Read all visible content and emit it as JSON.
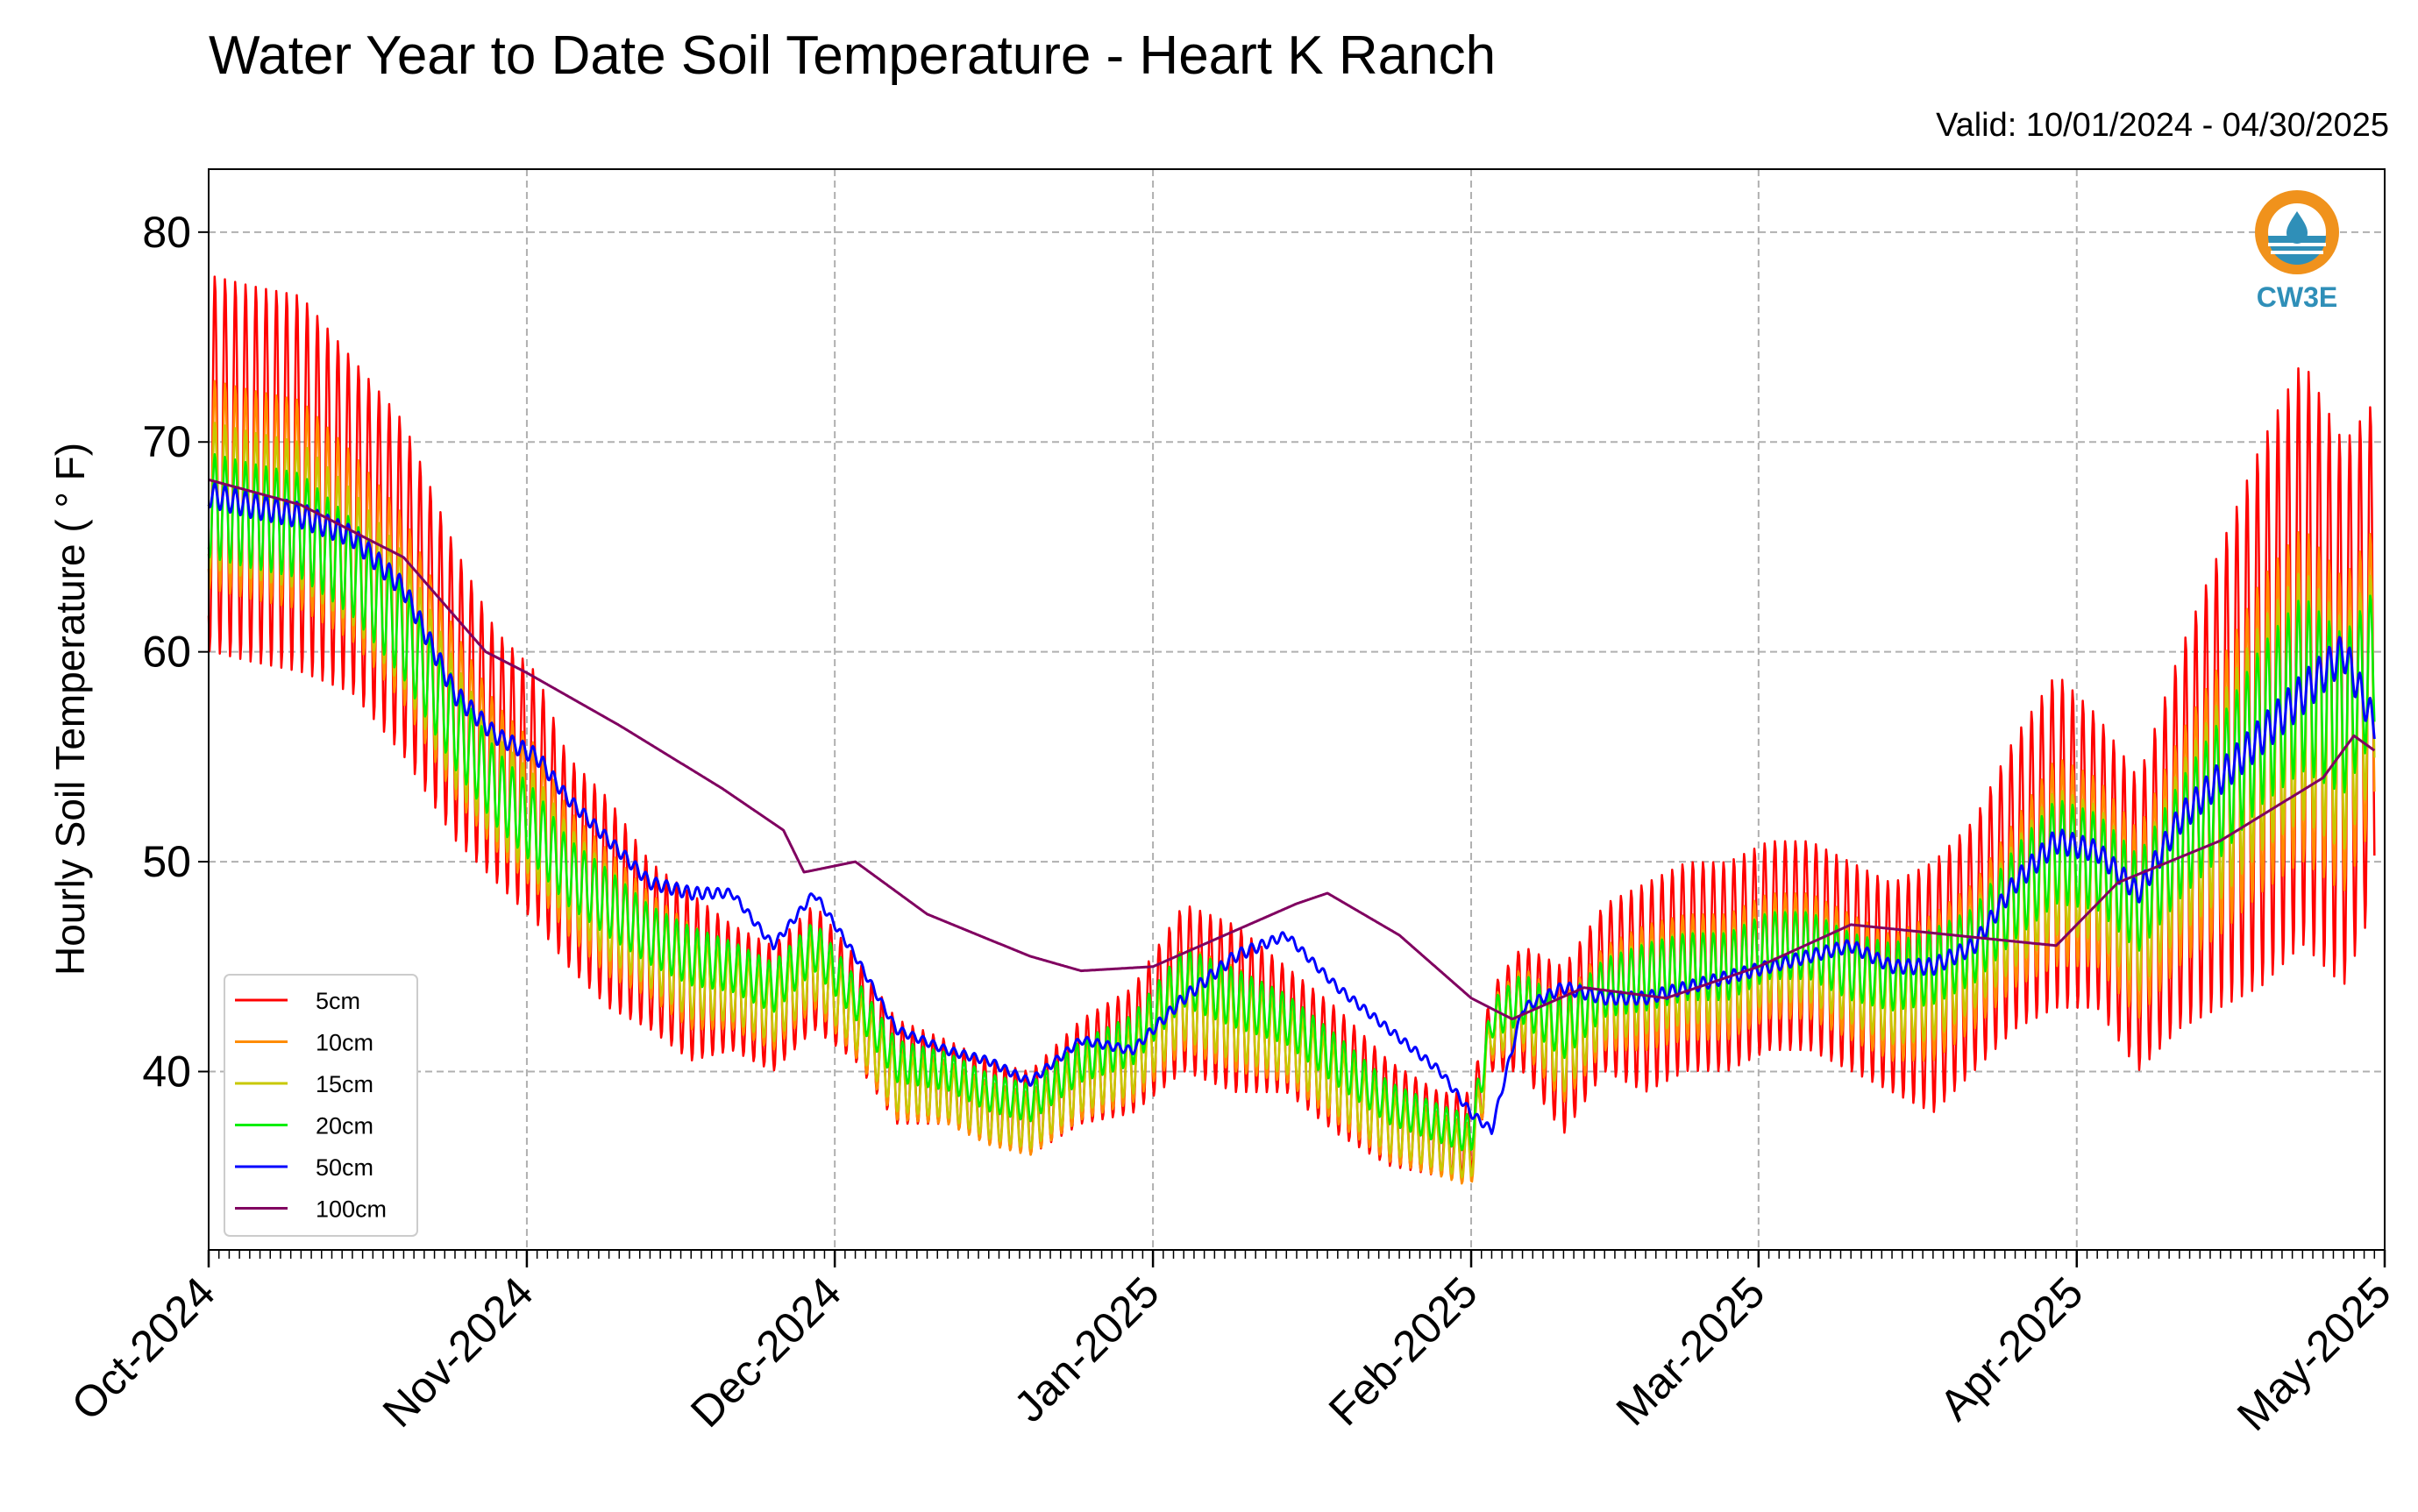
{
  "chart_data": {
    "type": "line",
    "title": "Water Year to Date Soil Temperature - Heart K Ranch",
    "subtitle": "Valid: 10/01/2024 - 04/30/2025",
    "xlabel": "",
    "ylabel": "Hourly Soil Temperature ($^\\circ$F)",
    "ylabel_display": "Hourly Soil Temperature ( ° F)",
    "x_range": [
      "2024-10-01",
      "2025-05-01"
    ],
    "ylim": [
      31.5,
      83
    ],
    "y_ticks": [
      40,
      50,
      60,
      70,
      80
    ],
    "x_ticks": [
      {
        "date": "2024-10-01",
        "label": "Oct-2024"
      },
      {
        "date": "2024-11-01",
        "label": "Nov-2024"
      },
      {
        "date": "2024-12-01",
        "label": "Dec-2024"
      },
      {
        "date": "2025-01-01",
        "label": "Jan-2025"
      },
      {
        "date": "2025-02-01",
        "label": "Feb-2025"
      },
      {
        "date": "2025-03-01",
        "label": "Mar-2025"
      },
      {
        "date": "2025-04-01",
        "label": "Apr-2025"
      },
      {
        "date": "2025-05-01",
        "label": "May-2025"
      }
    ],
    "grid": true,
    "legend_position": "lower-left",
    "logo": "CW3E",
    "series": [
      {
        "name": "5cm",
        "color": "#ff0000",
        "x": [
          "2024-10-01",
          "2024-10-05",
          "2024-10-10",
          "2024-10-15",
          "2024-10-20",
          "2024-10-25",
          "2024-10-29",
          "2024-11-02",
          "2024-11-05",
          "2024-11-09",
          "2024-11-13",
          "2024-11-17",
          "2024-11-21",
          "2024-11-25",
          "2024-11-29",
          "2024-12-03",
          "2024-12-07",
          "2024-12-12",
          "2024-12-16",
          "2024-12-20",
          "2024-12-25",
          "2024-12-30",
          "2025-01-04",
          "2025-01-09",
          "2025-01-14",
          "2025-01-19",
          "2025-01-24",
          "2025-01-29",
          "2025-02-01",
          "2025-02-03",
          "2025-02-06",
          "2025-02-10",
          "2025-02-14",
          "2025-02-18",
          "2025-02-22",
          "2025-02-26",
          "2025-03-02",
          "2025-03-06",
          "2025-03-10",
          "2025-03-14",
          "2025-03-18",
          "2025-03-22",
          "2025-03-26",
          "2025-03-30",
          "2025-04-03",
          "2025-04-07",
          "2025-04-11",
          "2025-04-15",
          "2025-04-19",
          "2025-04-23",
          "2025-04-27",
          "2025-04-30"
        ],
        "y": [
          69,
          68.5,
          68,
          66,
          63,
          58,
          55,
          53,
          50,
          48,
          46,
          44.5,
          44,
          43,
          45,
          43,
          40,
          39.5,
          38.5,
          38,
          40,
          41,
          44,
          43,
          42,
          40,
          38,
          37,
          37,
          42,
          43,
          41,
          44,
          44,
          45,
          45,
          46,
          46,
          45,
          44,
          44,
          46,
          49,
          51,
          50,
          47,
          51,
          54,
          57,
          60,
          57,
          60
        ],
        "amplitude": [
          9,
          9,
          9,
          8,
          8,
          7,
          6,
          6,
          5,
          5,
          4,
          4,
          3,
          3,
          3,
          2.5,
          2.5,
          2,
          2,
          2,
          2.5,
          3,
          4,
          4,
          3,
          3,
          2.5,
          2,
          2,
          2,
          3,
          4,
          4,
          5,
          5,
          5,
          5,
          5,
          5,
          5,
          6,
          6,
          7,
          8,
          7,
          7,
          9,
          11,
          13,
          14,
          13,
          12
        ]
      },
      {
        "name": "10cm",
        "color": "#ff8c00",
        "x": [
          "2024-10-01",
          "2024-10-05",
          "2024-10-10",
          "2024-10-15",
          "2024-10-20",
          "2024-10-25",
          "2024-10-29",
          "2024-11-02",
          "2024-11-05",
          "2024-11-09",
          "2024-11-13",
          "2024-11-17",
          "2024-11-21",
          "2024-11-25",
          "2024-11-29",
          "2024-12-03",
          "2024-12-07",
          "2024-12-12",
          "2024-12-16",
          "2024-12-20",
          "2024-12-25",
          "2024-12-30",
          "2025-01-04",
          "2025-01-09",
          "2025-01-14",
          "2025-01-19",
          "2025-01-24",
          "2025-01-29",
          "2025-02-01",
          "2025-02-03",
          "2025-02-06",
          "2025-02-10",
          "2025-02-14",
          "2025-02-18",
          "2025-02-22",
          "2025-02-26",
          "2025-03-02",
          "2025-03-06",
          "2025-03-10",
          "2025-03-14",
          "2025-03-18",
          "2025-03-22",
          "2025-03-26",
          "2025-03-30",
          "2025-04-03",
          "2025-04-07",
          "2025-04-11",
          "2025-04-15",
          "2025-04-19",
          "2025-04-23",
          "2025-04-27",
          "2025-04-30"
        ],
        "y": [
          68,
          67.5,
          67,
          65,
          62,
          57,
          54,
          52,
          49.5,
          47.5,
          46,
          44.5,
          44,
          43,
          45,
          42.5,
          39.5,
          39,
          38,
          37.5,
          39.5,
          40.5,
          43.5,
          42.5,
          41.5,
          39.5,
          37.5,
          36.5,
          36,
          42,
          43,
          41,
          43.5,
          44,
          44.5,
          44.5,
          45.5,
          45.5,
          44.5,
          43.5,
          44,
          45.5,
          48,
          50,
          49.5,
          47,
          50.5,
          53,
          56,
          58,
          56,
          59
        ],
        "amplitude": [
          5,
          5,
          5,
          4.5,
          4.5,
          4,
          3.5,
          3.5,
          3,
          3,
          2.5,
          2.5,
          2,
          2,
          2,
          1.8,
          1.8,
          1.5,
          1.5,
          1.5,
          1.8,
          2,
          2.5,
          2.5,
          2,
          2,
          1.8,
          1.5,
          1.5,
          1.5,
          2,
          2.5,
          2.5,
          3,
          3,
          3,
          3,
          3,
          3,
          3,
          3.5,
          3.5,
          4,
          5,
          4.5,
          4.5,
          5.5,
          6.5,
          7.5,
          8,
          7.5,
          7
        ]
      },
      {
        "name": "15cm",
        "color": "#c8c800",
        "x": [
          "2024-10-01",
          "2024-10-05",
          "2024-10-10",
          "2024-10-15",
          "2024-10-20",
          "2024-10-25",
          "2024-10-29",
          "2024-11-02",
          "2024-11-05",
          "2024-11-09",
          "2024-11-13",
          "2024-11-17",
          "2024-11-21",
          "2024-11-25",
          "2024-11-29",
          "2024-12-03",
          "2024-12-07",
          "2024-12-12",
          "2024-12-16",
          "2024-12-20",
          "2024-12-25",
          "2024-12-30",
          "2025-01-04",
          "2025-01-09",
          "2025-01-14",
          "2025-01-19",
          "2025-01-24",
          "2025-01-29",
          "2025-02-01",
          "2025-02-03",
          "2025-02-06",
          "2025-02-10",
          "2025-02-14",
          "2025-02-18",
          "2025-02-22",
          "2025-02-26",
          "2025-03-02",
          "2025-03-06",
          "2025-03-10",
          "2025-03-14",
          "2025-03-18",
          "2025-03-22",
          "2025-03-26",
          "2025-03-30",
          "2025-04-03",
          "2025-04-07",
          "2025-04-11",
          "2025-04-15",
          "2025-04-19",
          "2025-04-23",
          "2025-04-27",
          "2025-04-30"
        ],
        "y": [
          67.5,
          67,
          66.5,
          64.5,
          61.5,
          56.5,
          53.5,
          51.5,
          49.5,
          47.5,
          46,
          44.5,
          44,
          43,
          45,
          42.5,
          39.5,
          39,
          38,
          37.5,
          39.5,
          40.5,
          43.5,
          42.5,
          41.5,
          39.5,
          37.5,
          36.5,
          36,
          42,
          43,
          41,
          43.5,
          44,
          44.5,
          44.5,
          45.5,
          45.5,
          44.5,
          43.5,
          44,
          45.5,
          48,
          50,
          49.5,
          47,
          50.5,
          53,
          56,
          58,
          56,
          59
        ],
        "amplitude": [
          3.5,
          3.5,
          3.5,
          3.2,
          3.2,
          3,
          2.5,
          2.5,
          2.2,
          2.2,
          2,
          2,
          1.6,
          1.6,
          1.6,
          1.4,
          1.4,
          1.2,
          1.2,
          1.2,
          1.4,
          1.6,
          2,
          2,
          1.6,
          1.6,
          1.4,
          1.2,
          1.2,
          1.2,
          1.6,
          2,
          2,
          2.2,
          2.2,
          2.2,
          2.2,
          2.2,
          2.2,
          2.2,
          2.5,
          2.5,
          3,
          3.5,
          3.2,
          3.2,
          4,
          4.8,
          5.5,
          6,
          5.5,
          5
        ]
      },
      {
        "name": "20cm",
        "color": "#00ee00",
        "x": [
          "2024-10-01",
          "2024-10-05",
          "2024-10-10",
          "2024-10-15",
          "2024-10-20",
          "2024-10-25",
          "2024-10-29",
          "2024-11-02",
          "2024-11-05",
          "2024-11-09",
          "2024-11-13",
          "2024-11-17",
          "2024-11-21",
          "2024-11-25",
          "2024-11-29",
          "2024-12-03",
          "2024-12-07",
          "2024-12-12",
          "2024-12-16",
          "2024-12-20",
          "2024-12-25",
          "2024-12-30",
          "2025-01-04",
          "2025-01-09",
          "2025-01-14",
          "2025-01-19",
          "2025-01-24",
          "2025-01-29",
          "2025-02-01",
          "2025-02-03",
          "2025-02-06",
          "2025-02-10",
          "2025-02-14",
          "2025-02-18",
          "2025-02-22",
          "2025-02-26",
          "2025-03-02",
          "2025-03-06",
          "2025-03-10",
          "2025-03-14",
          "2025-03-18",
          "2025-03-22",
          "2025-03-26",
          "2025-03-30",
          "2025-04-03",
          "2025-04-07",
          "2025-04-11",
          "2025-04-15",
          "2025-04-19",
          "2025-04-23",
          "2025-04-27",
          "2025-04-30"
        ],
        "y": [
          67,
          66.5,
          66,
          64,
          61,
          56.5,
          53.5,
          51.5,
          49.5,
          48,
          46.5,
          45.5,
          45,
          44,
          46,
          43.5,
          40.5,
          40,
          39,
          38.5,
          40.5,
          41.5,
          44.5,
          43.5,
          42.5,
          40.5,
          38.5,
          37.5,
          37,
          42.5,
          43.5,
          42,
          44,
          44.5,
          45,
          45,
          46,
          46,
          45,
          44.5,
          45,
          46,
          48.5,
          50.5,
          50,
          48,
          51,
          53.5,
          56.5,
          58.5,
          57,
          59.5
        ],
        "amplitude": [
          2.5,
          2.5,
          2.5,
          2.3,
          2.3,
          2.1,
          1.8,
          1.8,
          1.6,
          1.6,
          1.4,
          1.4,
          1.2,
          1.2,
          1.2,
          1,
          1,
          0.9,
          0.9,
          0.9,
          1,
          1.2,
          1.4,
          1.4,
          1.2,
          1.2,
          1,
          0.9,
          0.9,
          0.9,
          1.2,
          1.4,
          1.4,
          1.6,
          1.6,
          1.6,
          1.6,
          1.6,
          1.6,
          1.6,
          1.8,
          1.8,
          2.2,
          2.5,
          2.3,
          2.3,
          2.8,
          3.3,
          3.8,
          4.2,
          3.8,
          3.5
        ]
      },
      {
        "name": "50cm",
        "color": "#0000ff",
        "x": [
          "2024-10-01",
          "2024-10-05",
          "2024-10-10",
          "2024-10-15",
          "2024-10-20",
          "2024-10-25",
          "2024-10-29",
          "2024-11-02",
          "2024-11-05",
          "2024-11-09",
          "2024-11-13",
          "2024-11-17",
          "2024-11-21",
          "2024-11-25",
          "2024-11-29",
          "2024-12-03",
          "2024-12-07",
          "2024-12-12",
          "2024-12-16",
          "2024-12-20",
          "2024-12-25",
          "2024-12-30",
          "2025-01-04",
          "2025-01-09",
          "2025-01-14",
          "2025-01-19",
          "2025-01-24",
          "2025-01-29",
          "2025-02-01",
          "2025-02-03",
          "2025-02-06",
          "2025-02-10",
          "2025-02-14",
          "2025-02-18",
          "2025-02-22",
          "2025-02-26",
          "2025-03-02",
          "2025-03-06",
          "2025-03-10",
          "2025-03-14",
          "2025-03-18",
          "2025-03-22",
          "2025-03-26",
          "2025-03-30",
          "2025-04-03",
          "2025-04-07",
          "2025-04-11",
          "2025-04-15",
          "2025-04-19",
          "2025-04-23",
          "2025-04-27",
          "2025-04-30"
        ],
        "y": [
          67.5,
          67,
          66.5,
          65.5,
          63,
          58,
          56,
          55,
          53,
          51,
          49,
          48.5,
          48.5,
          46,
          48.5,
          45.5,
          42,
          41,
          40.5,
          39.5,
          41.5,
          41,
          43.5,
          45.5,
          46.5,
          44,
          42,
          40,
          38,
          37.2,
          43,
          44,
          43.5,
          43.5,
          44,
          44.5,
          45,
          45.5,
          46,
          45,
          45,
          46,
          49,
          51,
          50.5,
          48.5,
          52,
          54,
          56,
          58,
          60,
          56.5
        ],
        "amplitude": [
          0.6,
          0.6,
          0.6,
          0.5,
          0.5,
          0.5,
          0.4,
          0.4,
          0.3,
          0.3,
          0.3,
          0.3,
          0.2,
          0.2,
          0.2,
          0.2,
          0.2,
          0.2,
          0.2,
          0.2,
          0.2,
          0.2,
          0.3,
          0.3,
          0.2,
          0.2,
          0.2,
          0.2,
          0.2,
          0.2,
          0.2,
          0.3,
          0.3,
          0.3,
          0.3,
          0.3,
          0.3,
          0.3,
          0.3,
          0.3,
          0.4,
          0.4,
          0.5,
          0.6,
          0.5,
          0.5,
          0.7,
          0.8,
          0.9,
          1,
          0.9,
          0.8
        ]
      },
      {
        "name": "100cm",
        "color": "#800060",
        "x": [
          "2024-10-01",
          "2024-10-10",
          "2024-10-20",
          "2024-10-28",
          "2024-11-01",
          "2024-11-10",
          "2024-11-20",
          "2024-11-26",
          "2024-11-28",
          "2024-12-03",
          "2024-12-10",
          "2024-12-20",
          "2024-12-25",
          "2025-01-01",
          "2025-01-08",
          "2025-01-15",
          "2025-01-18",
          "2025-01-25",
          "2025-02-01",
          "2025-02-05",
          "2025-02-12",
          "2025-02-20",
          "2025-03-01",
          "2025-03-10",
          "2025-03-20",
          "2025-03-30",
          "2025-04-05",
          "2025-04-15",
          "2025-04-25",
          "2025-04-28",
          "2025-04-30"
        ],
        "y": [
          68.2,
          67,
          64.5,
          60,
          59,
          56.5,
          53.5,
          51.5,
          49.5,
          50,
          47.5,
          45.5,
          44.8,
          45,
          46.5,
          48,
          48.5,
          46.5,
          43.5,
          42.5,
          44,
          43.5,
          45,
          47,
          46.5,
          46,
          49,
          51,
          54,
          56,
          55.3
        ],
        "amplitude": []
      }
    ]
  },
  "legend": {
    "title": "",
    "items": [
      {
        "label": "5cm",
        "color": "#ff0000"
      },
      {
        "label": "10cm",
        "color": "#ff8c00"
      },
      {
        "label": "15cm",
        "color": "#c8c800"
      },
      {
        "label": "20cm",
        "color": "#00ee00"
      },
      {
        "label": "50cm",
        "color": "#0000ff"
      },
      {
        "label": "100cm",
        "color": "#800060"
      }
    ]
  }
}
